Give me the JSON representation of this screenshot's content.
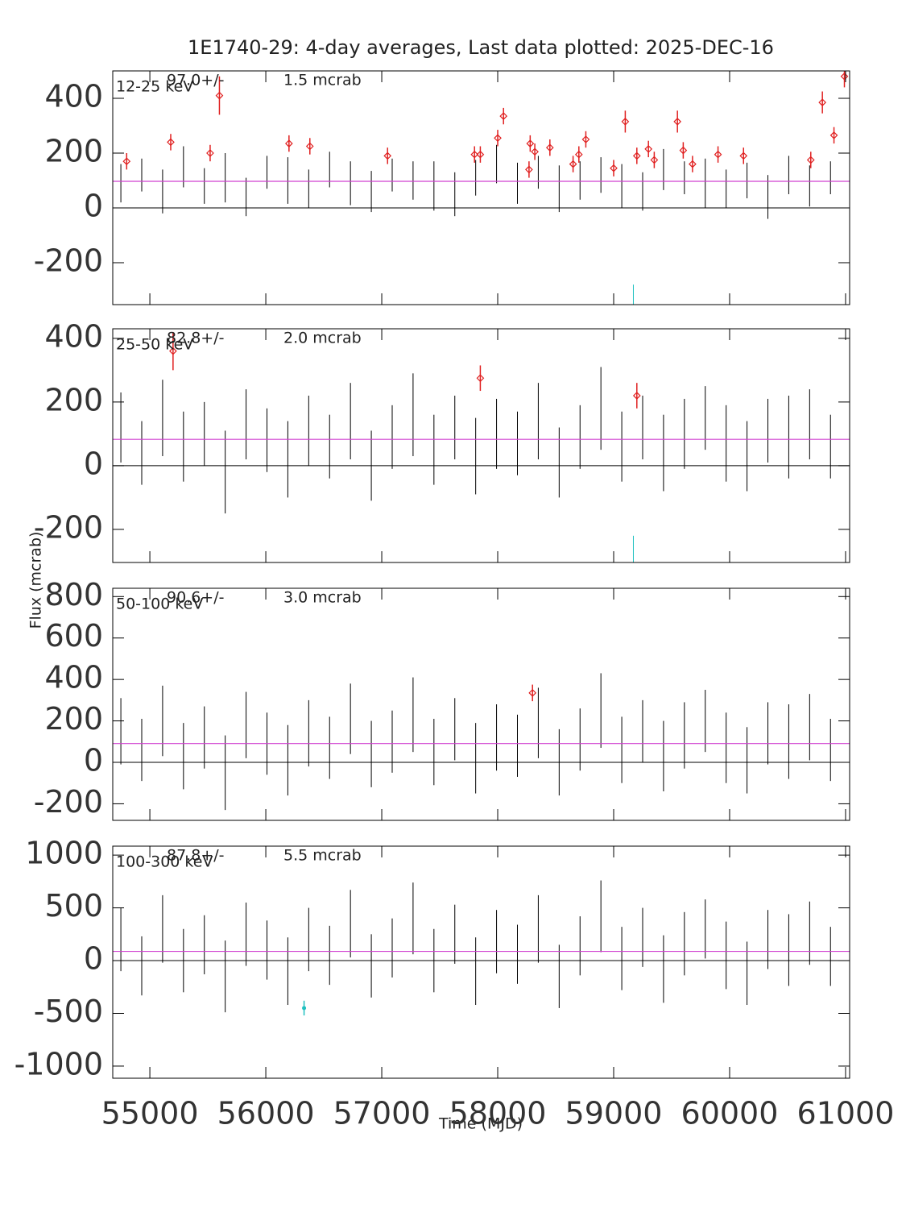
{
  "title": "1E1740-29:  4-day averages,  Last data plotted: 2025-DEC-16",
  "ylabel": "Flux (mcrab)",
  "xlabel": "Time (MJD)",
  "chart_data": [
    {
      "type": "errorbar",
      "band": "12-25 keV",
      "mean": 97.0,
      "mean_label": "97.0+/-",
      "error_label": "1.5 mcrab",
      "mean_color": "#d040d0",
      "xlim": [
        54680,
        61035
      ],
      "xticks": [
        55000,
        56000,
        57000,
        58000,
        59000,
        60000,
        61000
      ],
      "ylim": [
        -353,
        500
      ],
      "yticks": [
        -200,
        0,
        200,
        400
      ],
      "series": [
        {
          "color": "#000000",
          "marker": "none",
          "x": [
            54750,
            54930,
            55110,
            55290,
            55470,
            55650,
            55830,
            56010,
            56190,
            56370,
            56550,
            56730,
            56910,
            57090,
            57270,
            57450,
            57630,
            57810,
            57990,
            58170,
            58350,
            58530,
            58710,
            58890,
            59070,
            59250,
            59430,
            59610,
            59790,
            59970,
            60150,
            60330,
            60510,
            60690,
            60870
          ],
          "values": [
            90,
            120,
            60,
            150,
            80,
            110,
            40,
            130,
            100,
            70,
            140,
            90,
            60,
            120,
            100,
            80,
            50,
            110,
            160,
            90,
            130,
            70,
            100,
            120,
            80,
            60,
            140,
            110,
            90,
            70,
            100,
            40,
            120,
            80,
            110
          ],
          "errors": [
            70,
            60,
            80,
            75,
            65,
            90,
            70,
            60,
            85,
            70,
            65,
            80,
            75,
            60,
            70,
            90,
            80,
            65,
            70,
            75,
            60,
            85,
            70,
            65,
            80,
            70,
            75,
            60,
            90,
            70,
            65,
            80,
            70,
            75,
            60
          ]
        },
        {
          "color": "#e02020",
          "marker": "diamond",
          "x": [
            54800,
            55180,
            55520,
            55600,
            56200,
            56380,
            57050,
            57800,
            57850,
            58000,
            58050,
            58270,
            58280,
            58320,
            58450,
            58650,
            58700,
            58760,
            59000,
            59100,
            59200,
            59300,
            59350,
            59550,
            59600,
            59680,
            59900,
            60120,
            60700,
            60800,
            60900,
            60990
          ],
          "values": [
            170,
            240,
            200,
            410,
            235,
            225,
            190,
            195,
            195,
            255,
            335,
            140,
            235,
            205,
            220,
            160,
            195,
            250,
            145,
            315,
            190,
            215,
            175,
            315,
            210,
            160,
            195,
            190,
            175,
            385,
            265,
            480
          ],
          "errors": [
            30,
            30,
            30,
            70,
            30,
            30,
            30,
            30,
            30,
            30,
            30,
            30,
            30,
            30,
            30,
            30,
            30,
            30,
            30,
            40,
            30,
            30,
            30,
            40,
            30,
            30,
            30,
            30,
            30,
            40,
            30,
            40
          ]
        },
        {
          "color": "#20c0c0",
          "marker": "none",
          "x": [
            59170
          ],
          "values": [
            -350
          ],
          "errors": [
            70
          ]
        }
      ]
    },
    {
      "type": "errorbar",
      "band": "25-50 keV",
      "mean": 82.8,
      "mean_label": "82.8+/-",
      "error_label": "2.0 mcrab",
      "mean_color": "#d040d0",
      "xlim": [
        54680,
        61035
      ],
      "xticks": [
        55000,
        56000,
        57000,
        58000,
        59000,
        60000,
        61000
      ],
      "ylim": [
        -304,
        430
      ],
      "yticks": [
        -200,
        0,
        200,
        400
      ],
      "series": [
        {
          "color": "#000000",
          "marker": "none",
          "x": [
            54750,
            54930,
            55110,
            55290,
            55470,
            55650,
            55830,
            56010,
            56190,
            56370,
            56550,
            56730,
            56910,
            57090,
            57270,
            57450,
            57630,
            57810,
            57990,
            58170,
            58350,
            58530,
            58710,
            58890,
            59070,
            59250,
            59430,
            59610,
            59790,
            59970,
            60150,
            60330,
            60510,
            60690,
            60870
          ],
          "values": [
            120,
            40,
            150,
            60,
            100,
            -20,
            130,
            80,
            20,
            110,
            60,
            140,
            0,
            90,
            160,
            50,
            120,
            30,
            100,
            70,
            140,
            10,
            90,
            180,
            60,
            120,
            40,
            100,
            150,
            70,
            30,
            110,
            90,
            130,
            60
          ],
          "errors": [
            110,
            100,
            120,
            110,
            100,
            130,
            110,
            100,
            120,
            110,
            100,
            120,
            110,
            100,
            130,
            110,
            100,
            120,
            110,
            100,
            120,
            110,
            100,
            130,
            110,
            100,
            120,
            110,
            100,
            120,
            110,
            100,
            130,
            110,
            100
          ]
        },
        {
          "color": "#e02020",
          "marker": "diamond",
          "x": [
            55200,
            57850,
            59200
          ],
          "values": [
            360,
            275,
            220
          ],
          "errors": [
            60,
            40,
            40
          ]
        },
        {
          "color": "#20c0c0",
          "marker": "none",
          "x": [
            59170
          ],
          "values": [
            -300
          ],
          "errors": [
            80
          ]
        }
      ]
    },
    {
      "type": "errorbar",
      "band": "50-100 keV",
      "mean": 90.6,
      "mean_label": "90.6+/-",
      "error_label": "3.0 mcrab",
      "mean_color": "#d040d0",
      "xlim": [
        54680,
        61035
      ],
      "xticks": [
        55000,
        56000,
        57000,
        58000,
        59000,
        60000,
        61000
      ],
      "ylim": [
        -280,
        840
      ],
      "yticks": [
        -200,
        0,
        200,
        400,
        600,
        800
      ],
      "series": [
        {
          "color": "#000000",
          "marker": "none",
          "x": [
            54750,
            54930,
            55110,
            55290,
            55470,
            55650,
            55830,
            56010,
            56190,
            56370,
            56550,
            56730,
            56910,
            57090,
            57270,
            57450,
            57630,
            57810,
            57990,
            58170,
            58350,
            58530,
            58710,
            58890,
            59070,
            59250,
            59430,
            59610,
            59790,
            59970,
            60150,
            60330,
            60510,
            60690,
            60870
          ],
          "values": [
            150,
            60,
            200,
            30,
            120,
            -50,
            180,
            90,
            10,
            140,
            70,
            210,
            40,
            100,
            230,
            50,
            160,
            20,
            120,
            80,
            190,
            0,
            110,
            250,
            60,
            150,
            30,
            130,
            200,
            70,
            10,
            140,
            100,
            170,
            60
          ],
          "errors": [
            160,
            150,
            170,
            160,
            150,
            180,
            160,
            150,
            170,
            160,
            150,
            170,
            160,
            150,
            180,
            160,
            150,
            170,
            160,
            150,
            170,
            160,
            150,
            180,
            160,
            150,
            170,
            160,
            150,
            170,
            160,
            150,
            180,
            160,
            150
          ]
        },
        {
          "color": "#e02020",
          "marker": "diamond",
          "x": [
            58300
          ],
          "values": [
            335
          ],
          "errors": [
            40
          ]
        }
      ]
    },
    {
      "type": "errorbar",
      "band": "100-300 keV",
      "mean": 87.8,
      "mean_label": "87.8+/-",
      "error_label": "5.5 mcrab",
      "mean_color": "#d040d0",
      "xlim": [
        54680,
        61035
      ],
      "xticks": [
        55000,
        56000,
        57000,
        58000,
        59000,
        60000,
        61000
      ],
      "ylim": [
        -1115,
        1085
      ],
      "yticks": [
        -1000,
        -500,
        0,
        500,
        1000
      ],
      "series": [
        {
          "color": "#000000",
          "marker": "none",
          "x": [
            54750,
            54930,
            55110,
            55290,
            55470,
            55650,
            55830,
            56010,
            56190,
            56370,
            56550,
            56730,
            56910,
            57090,
            57270,
            57450,
            57630,
            57810,
            57990,
            58170,
            58350,
            58530,
            58710,
            58890,
            59070,
            59250,
            59430,
            59610,
            59790,
            59970,
            60150,
            60330,
            60510,
            60690,
            60870
          ],
          "values": [
            200,
            -50,
            300,
            0,
            150,
            -150,
            250,
            100,
            -100,
            200,
            50,
            350,
            -50,
            120,
            400,
            0,
            250,
            -100,
            180,
            60,
            300,
            -150,
            140,
            420,
            20,
            220,
            -80,
            160,
            300,
            50,
            -120,
            200,
            100,
            260,
            40
          ],
          "errors": [
            300,
            280,
            320,
            300,
            280,
            340,
            300,
            280,
            320,
            300,
            280,
            320,
            300,
            280,
            340,
            300,
            280,
            320,
            300,
            280,
            320,
            300,
            280,
            340,
            300,
            280,
            320,
            300,
            280,
            320,
            300,
            280,
            340,
            300,
            280
          ]
        },
        {
          "color": "#20c0c0",
          "marker": "dot",
          "x": [
            56330
          ],
          "values": [
            -450
          ],
          "errors": [
            70
          ]
        }
      ]
    }
  ]
}
